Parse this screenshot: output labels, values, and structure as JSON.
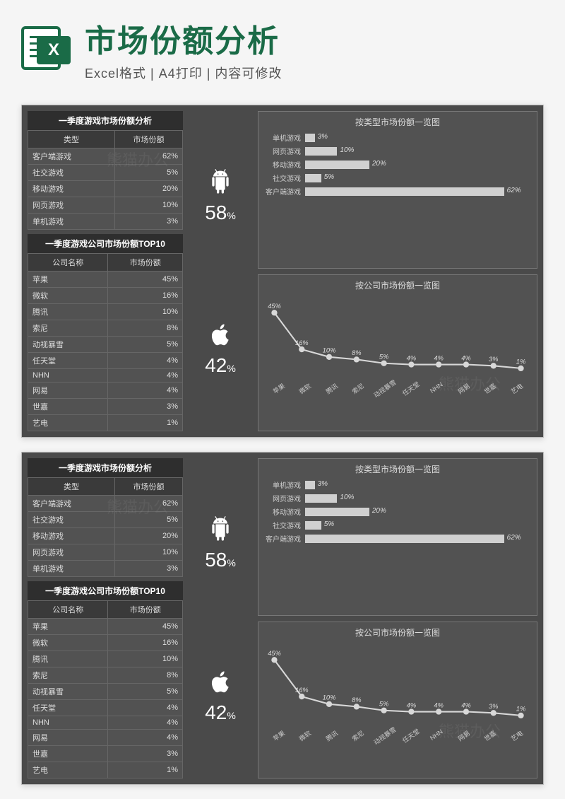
{
  "header": {
    "title": "市场份额分析",
    "subtitle": "Excel格式 | A4打印 | 内容可修改",
    "icon_label": "X",
    "icon_green": "#1a6b47"
  },
  "palette": {
    "sheet_bg": "#4a4a4a",
    "cell_bg": "#525252",
    "dark_bg": "#2e2e2e",
    "border": "#666666",
    "bar_fill": "#d0d0d0",
    "text": "#dddddd"
  },
  "table_type": {
    "title": "一季度游戏市场份额分析",
    "columns": [
      "类型",
      "市场份额"
    ],
    "rows": [
      [
        "客户端游戏",
        "62%"
      ],
      [
        "社交游戏",
        "5%"
      ],
      [
        "移动游戏",
        "20%"
      ],
      [
        "网页游戏",
        "10%"
      ],
      [
        "单机游戏",
        "3%"
      ]
    ]
  },
  "table_company": {
    "title": "一季度游戏公司市场份额TOP10",
    "columns": [
      "公司名称",
      "市场份额"
    ],
    "rows": [
      [
        "苹果",
        "45%"
      ],
      [
        "微软",
        "16%"
      ],
      [
        "腾讯",
        "10%"
      ],
      [
        "索尼",
        "8%"
      ],
      [
        "动视暴雪",
        "5%"
      ],
      [
        "任天堂",
        "4%"
      ],
      [
        "NHN",
        "4%"
      ],
      [
        "网易",
        "4%"
      ],
      [
        "世嘉",
        "3%"
      ],
      [
        "艺电",
        "1%"
      ]
    ]
  },
  "platforms": {
    "android": {
      "share": "58",
      "unit": "%"
    },
    "apple": {
      "share": "42",
      "unit": "%"
    }
  },
  "bar_chart": {
    "title": "按类型市场份额一览图",
    "type": "horizontal_bar",
    "max": 70,
    "bars": [
      {
        "label": "单机游戏",
        "value": 3,
        "text": "3%"
      },
      {
        "label": "网页游戏",
        "value": 10,
        "text": "10%"
      },
      {
        "label": "移动游戏",
        "value": 20,
        "text": "20%"
      },
      {
        "label": "社交游戏",
        "value": 5,
        "text": "5%"
      },
      {
        "label": "客户端游戏",
        "value": 62,
        "text": "62%"
      }
    ],
    "bar_color": "#d0d0d0",
    "label_fontsize": 10
  },
  "line_chart": {
    "title": "按公司市场份额一览图",
    "type": "line",
    "ylim": [
      0,
      50
    ],
    "points": [
      {
        "label": "苹果",
        "y": 45,
        "text": "45%"
      },
      {
        "label": "微软",
        "y": 16,
        "text": "16%"
      },
      {
        "label": "腾讯",
        "y": 10,
        "text": "10%"
      },
      {
        "label": "索尼",
        "y": 8,
        "text": "8%"
      },
      {
        "label": "动视暴雪",
        "y": 5,
        "text": "5%"
      },
      {
        "label": "任天堂",
        "y": 4,
        "text": "4%"
      },
      {
        "label": "NHN",
        "y": 4,
        "text": "4%"
      },
      {
        "label": "网易",
        "y": 4,
        "text": "4%"
      },
      {
        "label": "世嘉",
        "y": 3,
        "text": "3%"
      },
      {
        "label": "艺电",
        "y": 1,
        "text": "1%"
      }
    ],
    "line_color": "#d8d8d8",
    "marker": "circle",
    "marker_size": 4,
    "line_width": 2
  },
  "watermark": "熊猫办公"
}
